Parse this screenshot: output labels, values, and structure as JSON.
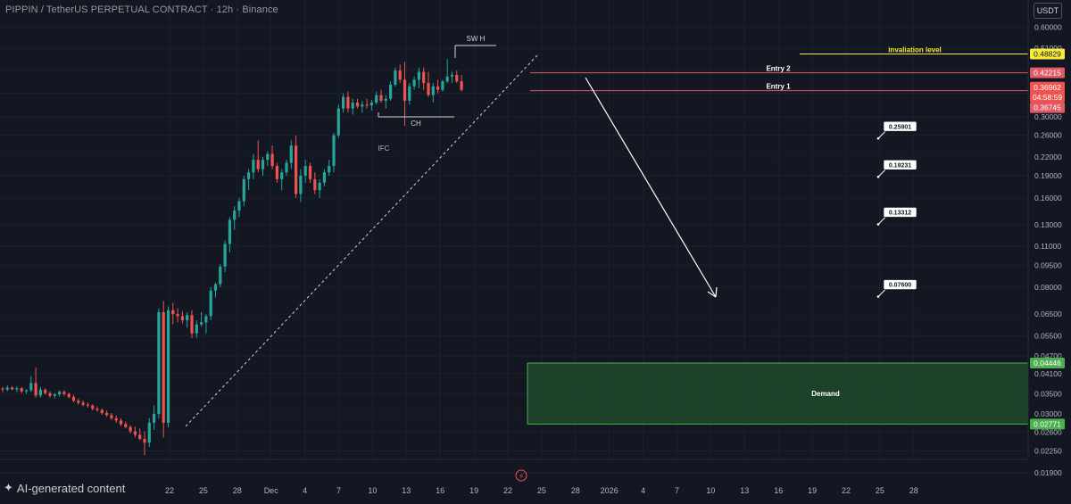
{
  "header": {
    "symbol_title": "PIPPIN / TetherUS PERPETUAL CONTRACT · 12h · Binance",
    "currency_button": "USDT"
  },
  "watermark": {
    "text": "AI-generated content",
    "icon": "sparkle-icon"
  },
  "colors": {
    "background": "#131722",
    "up_candle": "#26a69a",
    "down_candle": "#ef5350",
    "invalidation": "#f5e93a",
    "entry_line": "#e05a66",
    "demand_zone": "#1e4a2b",
    "demand_border": "#4caf50",
    "target_label_bg": "#ffffff",
    "white_annotation": "#ffffff"
  },
  "chart_data": {
    "type": "candlestick",
    "price_scale": "log",
    "ylim": [
      0.019,
      0.62
    ],
    "x_ticks": [
      "22",
      "25",
      "28",
      "Dec",
      "4",
      "7",
      "10",
      "13",
      "16",
      "19",
      "22",
      "25",
      "28",
      "2026",
      "4",
      "7",
      "10",
      "13",
      "16",
      "19",
      "22",
      "25",
      "28"
    ],
    "y_ticks": [
      "0.60000",
      "0.51000",
      "0.43000",
      "0.36000",
      "0.30000",
      "0.26000",
      "0.22000",
      "0.19000",
      "0.16000",
      "0.13000",
      "0.11000",
      "0.09500",
      "0.08000",
      "0.06500",
      "0.05500",
      "0.04700",
      "0.04100",
      "0.03500",
      "0.03000",
      "0.02600",
      "0.02250",
      "0.01900"
    ],
    "price_labels": [
      {
        "value": "0.48829",
        "color": "#f5e93a",
        "text_color": "#131722"
      },
      {
        "value": "0.42215",
        "color": "#e05a66",
        "text_color": "#ffffff"
      },
      {
        "value": "0.36962",
        "color": "#ef5350",
        "text_color": "#ffffff"
      },
      {
        "value": "04:58:59",
        "color": "#ef5350",
        "text_color": "#ffffff"
      },
      {
        "value": "0.36745",
        "color": "#e05a66",
        "text_color": "#ffffff"
      },
      {
        "value": "0.04446",
        "color": "#4caf50",
        "text_color": "#ffffff"
      },
      {
        "value": "0.02771",
        "color": "#4caf50",
        "text_color": "#ffffff"
      }
    ],
    "levels": [
      {
        "label": "invaliation level",
        "price": 0.48829
      },
      {
        "label": "Entry 2",
        "price": 0.42215
      },
      {
        "label": "Entry 1",
        "price": 0.36745
      }
    ],
    "targets": [
      "0.25901",
      "0.19231",
      "0.13312",
      "0.07600"
    ],
    "target_prices": [
      0.25901,
      0.19231,
      0.13312,
      0.076
    ],
    "demand_zone": {
      "label": "Demand",
      "top": 0.04446,
      "bottom": 0.02771
    },
    "annotations": {
      "swing_high": "SW H",
      "change": "CH",
      "ifc": "IFC"
    },
    "candles": [
      [
        0.0365,
        0.037,
        0.0355,
        0.0362
      ],
      [
        0.0362,
        0.0375,
        0.0358,
        0.0368
      ],
      [
        0.0368,
        0.0372,
        0.036,
        0.0363
      ],
      [
        0.0363,
        0.0371,
        0.0356,
        0.0366
      ],
      [
        0.0366,
        0.0369,
        0.0352,
        0.0357
      ],
      [
        0.0357,
        0.0363,
        0.035,
        0.036
      ],
      [
        0.036,
        0.0402,
        0.0355,
        0.0381
      ],
      [
        0.0381,
        0.043,
        0.034,
        0.0346
      ],
      [
        0.0346,
        0.037,
        0.034,
        0.0362
      ],
      [
        0.0362,
        0.0366,
        0.0348,
        0.0352
      ],
      [
        0.0352,
        0.0357,
        0.034,
        0.0345
      ],
      [
        0.0345,
        0.0353,
        0.0338,
        0.0349
      ],
      [
        0.0349,
        0.036,
        0.0343,
        0.0356
      ],
      [
        0.0356,
        0.036,
        0.0345,
        0.035
      ],
      [
        0.035,
        0.0354,
        0.0338,
        0.0342
      ],
      [
        0.0342,
        0.0348,
        0.0328,
        0.0332
      ],
      [
        0.0332,
        0.0338,
        0.0322,
        0.0327
      ],
      [
        0.0327,
        0.0333,
        0.0318,
        0.0322
      ],
      [
        0.0322,
        0.0328,
        0.0315,
        0.032
      ],
      [
        0.032,
        0.0323,
        0.0308,
        0.0312
      ],
      [
        0.0312,
        0.0318,
        0.0305,
        0.0309
      ],
      [
        0.0309,
        0.0313,
        0.0298,
        0.0302
      ],
      [
        0.0302,
        0.0308,
        0.0293,
        0.0297
      ],
      [
        0.0297,
        0.0302,
        0.0286,
        0.029
      ],
      [
        0.029,
        0.0296,
        0.028,
        0.0285
      ],
      [
        0.0285,
        0.029,
        0.0273,
        0.0277
      ],
      [
        0.0277,
        0.0283,
        0.0268,
        0.0271
      ],
      [
        0.0271,
        0.0275,
        0.0258,
        0.0262
      ],
      [
        0.0262,
        0.0272,
        0.025,
        0.0255
      ],
      [
        0.0255,
        0.0268,
        0.0245,
        0.0247
      ],
      [
        0.0247,
        0.0262,
        0.0218,
        0.024
      ],
      [
        0.024,
        0.029,
        0.0232,
        0.028
      ],
      [
        0.028,
        0.032,
        0.0265,
        0.03
      ],
      [
        0.03,
        0.068,
        0.029,
        0.066
      ],
      [
        0.066,
        0.072,
        0.025,
        0.028
      ],
      [
        0.028,
        0.069,
        0.027,
        0.067
      ],
      [
        0.067,
        0.071,
        0.06,
        0.065
      ],
      [
        0.065,
        0.068,
        0.061,
        0.064
      ],
      [
        0.064,
        0.0665,
        0.0605,
        0.062
      ],
      [
        0.062,
        0.066,
        0.0585,
        0.0645
      ],
      [
        0.0645,
        0.067,
        0.054,
        0.056
      ],
      [
        0.056,
        0.062,
        0.054,
        0.06
      ],
      [
        0.06,
        0.066,
        0.059,
        0.061
      ],
      [
        0.061,
        0.065,
        0.056,
        0.064
      ],
      [
        0.064,
        0.08,
        0.062,
        0.078
      ],
      [
        0.078,
        0.083,
        0.074,
        0.082
      ],
      [
        0.082,
        0.096,
        0.08,
        0.094
      ],
      [
        0.094,
        0.115,
        0.09,
        0.112
      ],
      [
        0.112,
        0.138,
        0.105,
        0.135
      ],
      [
        0.135,
        0.15,
        0.125,
        0.145
      ],
      [
        0.145,
        0.16,
        0.138,
        0.156
      ],
      [
        0.156,
        0.19,
        0.15,
        0.185
      ],
      [
        0.185,
        0.2,
        0.17,
        0.195
      ],
      [
        0.195,
        0.225,
        0.185,
        0.215
      ],
      [
        0.215,
        0.25,
        0.195,
        0.2
      ],
      [
        0.2,
        0.22,
        0.19,
        0.215
      ],
      [
        0.215,
        0.23,
        0.205,
        0.225
      ],
      [
        0.225,
        0.24,
        0.2,
        0.205
      ],
      [
        0.205,
        0.21,
        0.18,
        0.185
      ],
      [
        0.185,
        0.2,
        0.17,
        0.195
      ],
      [
        0.195,
        0.215,
        0.19,
        0.21
      ],
      [
        0.21,
        0.25,
        0.2,
        0.24
      ],
      [
        0.24,
        0.26,
        0.16,
        0.165
      ],
      [
        0.165,
        0.2,
        0.155,
        0.19
      ],
      [
        0.19,
        0.215,
        0.18,
        0.205
      ],
      [
        0.205,
        0.21,
        0.18,
        0.185
      ],
      [
        0.185,
        0.195,
        0.165,
        0.17
      ],
      [
        0.17,
        0.185,
        0.16,
        0.18
      ],
      [
        0.18,
        0.2,
        0.175,
        0.195
      ],
      [
        0.195,
        0.215,
        0.19,
        0.205
      ],
      [
        0.205,
        0.265,
        0.195,
        0.26
      ],
      [
        0.26,
        0.33,
        0.255,
        0.32
      ],
      [
        0.32,
        0.36,
        0.31,
        0.35
      ],
      [
        0.35,
        0.365,
        0.31,
        0.32
      ],
      [
        0.32,
        0.345,
        0.305,
        0.335
      ],
      [
        0.335,
        0.345,
        0.32,
        0.325
      ],
      [
        0.325,
        0.34,
        0.31,
        0.33
      ],
      [
        0.33,
        0.345,
        0.32,
        0.328
      ],
      [
        0.328,
        0.342,
        0.315,
        0.335
      ],
      [
        0.335,
        0.365,
        0.33,
        0.355
      ],
      [
        0.355,
        0.37,
        0.335,
        0.34
      ],
      [
        0.34,
        0.355,
        0.32,
        0.345
      ],
      [
        0.345,
        0.395,
        0.34,
        0.385
      ],
      [
        0.385,
        0.44,
        0.38,
        0.43
      ],
      [
        0.43,
        0.45,
        0.39,
        0.4
      ],
      [
        0.4,
        0.46,
        0.28,
        0.34
      ],
      [
        0.34,
        0.39,
        0.33,
        0.38
      ],
      [
        0.38,
        0.41,
        0.37,
        0.4
      ],
      [
        0.4,
        0.44,
        0.375,
        0.425
      ],
      [
        0.425,
        0.44,
        0.37,
        0.39
      ],
      [
        0.39,
        0.425,
        0.35,
        0.355
      ],
      [
        0.355,
        0.39,
        0.335,
        0.38
      ],
      [
        0.38,
        0.4,
        0.36,
        0.37
      ],
      [
        0.37,
        0.4,
        0.365,
        0.395
      ],
      [
        0.395,
        0.47,
        0.39,
        0.41
      ],
      [
        0.41,
        0.425,
        0.39,
        0.415
      ],
      [
        0.415,
        0.43,
        0.39,
        0.395
      ],
      [
        0.395,
        0.415,
        0.365,
        0.3697
      ]
    ]
  }
}
